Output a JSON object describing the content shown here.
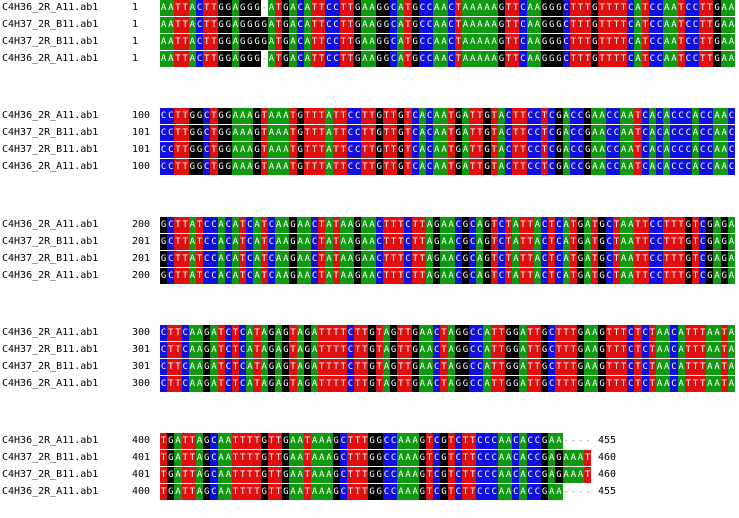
{
  "base_colors": {
    "A": "#119a11",
    "T": "#e01010",
    "G": "#000000",
    "C": "#1010e0",
    "-": "#ffffff"
  },
  "blocks": [
    {
      "rows": [
        {
          "name": "C4H36_2R_A11.ab1",
          "start": 1,
          "sequence": "AATTACTTGGAGGG-ATGACATTCCTTGAAGGCATGCCAACTAAAAAGTTCAAGGGCTTTGTTTTCATCCAATCCTTGAA"
        },
        {
          "name": "C4H37_2R_B11.ab1",
          "start": 1,
          "sequence": "AATTACTTGGAGGGGATGACATTCCTTGAAGGCATGCCAACTAAAAAGTTCAAGGGCTTTGTTTTCATCCAATCCTTGAA"
        },
        {
          "name": "C4H37_2R_B11.ab1",
          "start": 1,
          "sequence": "AATTACTTGGAGGGGATGACATTCCTTGAAGGCATGCCAACTAAAAAGTTCAAGGGCTTTGTTTTCATCCAATCCTTGAA"
        },
        {
          "name": "C4H36_2R_A11.ab1",
          "start": 1,
          "sequence": "AATTACTTGGAGGG-ATGACATTCCTTGAAGGCATGCCAACTAAAAAGTTCAAGGGCTTTGTTTTCATCCAATCCTTGAA"
        }
      ]
    },
    {
      "rows": [
        {
          "name": "C4H36_2R_A11.ab1",
          "start": 100,
          "sequence": "CCTTGGCTGGAAAGTAAATGTTTATTCCTTGTTGTCACAATGATTGTACTTCCTCGACCGAACCAATCACACCCACCAAC"
        },
        {
          "name": "C4H37_2R_B11.ab1",
          "start": 101,
          "sequence": "CCTTGGCTGGAAAGTAAATGTTTATTCCTTGTTGTCACAATGATTGTACTTCCTCGACCGAACCAATCACACCCACCAAC"
        },
        {
          "name": "C4H37_2R_B11.ab1",
          "start": 101,
          "sequence": "CCTTGGCTGGAAAGTAAATGTTTATTCCTTGTTGTCACAATGATTGTACTTCCTCGACCGAACCAATCACACCCACCAAC"
        },
        {
          "name": "C4H36_2R_A11.ab1",
          "start": 100,
          "sequence": "CCTTGGCTGGAAAGTAAATGTTTATTCCTTGTTGTCACAATGATTGTACTTCCTCGACCGAACCAATCACACCCACCAAC"
        }
      ]
    },
    {
      "rows": [
        {
          "name": "C4H36_2R_A11.ab1",
          "start": 200,
          "sequence": "GCTTATCCACATCATCAAGAACTATAAGAACTTTCTTAGAACGCAGTCTATTACTCATGATGCTAATTCCTTTGTCGAGA"
        },
        {
          "name": "C4H37_2R_B11.ab1",
          "start": 201,
          "sequence": "GCTTATCCACATCATCAAGAACTATAAGAACTTTCTTAGAACGCAGTCTATTACTCATGATGCTAATTCCTTTGTCGAGA"
        },
        {
          "name": "C4H37_2R_B11.ab1",
          "start": 201,
          "sequence": "GCTTATCCACATCATCAAGAACTATAAGAACTTTCTTAGAACGCAGTCTATTACTCATGATGCTAATTCCTTTGTCGAGA"
        },
        {
          "name": "C4H36_2R_A11.ab1",
          "start": 200,
          "sequence": "GCTTATCCACATCATCAAGAACTATAAGAACTTTCTTAGAACGCAGTCTATTACTCATGATGCTAATTCCTTTGTCGAGA"
        }
      ]
    },
    {
      "rows": [
        {
          "name": "C4H36_2R_A11.ab1",
          "start": 300,
          "sequence": "CTTCAAGATCTCATAGAGTAGATTTTCTTGTAGTTGAACTAGGCCATTGGATTGCTTTGAAGTTTCTCTAACATTTAATA"
        },
        {
          "name": "C4H37_2R_B11.ab1",
          "start": 301,
          "sequence": "CTTCAAGATCTCATAGAGTAGATTTTCTTGTAGTTGAACTAGGCCATTGGATTGCTTTGAAGTTTCTCTAACATTTAATA"
        },
        {
          "name": "C4H37_2R_B11.ab1",
          "start": 301,
          "sequence": "CTTCAAGATCTCATAGAGTAGATTTTCTTGTAGTTGAACTAGGCCATTGGATTGCTTTGAAGTTTCTCTAACATTTAATA"
        },
        {
          "name": "C4H36_2R_A11.ab1",
          "start": 300,
          "sequence": "CTTCAAGATCTCATAGAGTAGATTTTCTTGTAGTTGAACTAGGCCATTGGATTGCTTTGAAGTTTCTCTAACATTTAATA"
        }
      ]
    },
    {
      "rows": [
        {
          "name": "C4H36_2R_A11.ab1",
          "start": 400,
          "sequence": "TGATTAGCAATTTTGTTGAATAAAGCTTTGGCCAAAGTCGTCTTCCCAACACCGAA----",
          "end": 455
        },
        {
          "name": "C4H37_2R_B11.ab1",
          "start": 401,
          "sequence": "TGATTAGCAATTTTGTTGAATAAAGCTTTGGCCAAAGTCGTCTTCCCAACACCGAGAAAT",
          "end": 460
        },
        {
          "name": "C4H37_2R_B11.ab1",
          "start": 401,
          "sequence": "TGATTAGCAATTTTGTTGAATAAAGCTTTGGCCAAAGTCGTCTTCCCAACACCGAGAAAT",
          "end": 460
        },
        {
          "name": "C4H36_2R_A11.ab1",
          "start": 400,
          "sequence": "TGATTAGCAATTTTGTTGAATAAAGCTTTGGCCAAAGTCGTCTTCCCAACACCGAA----",
          "end": 455
        }
      ]
    }
  ]
}
